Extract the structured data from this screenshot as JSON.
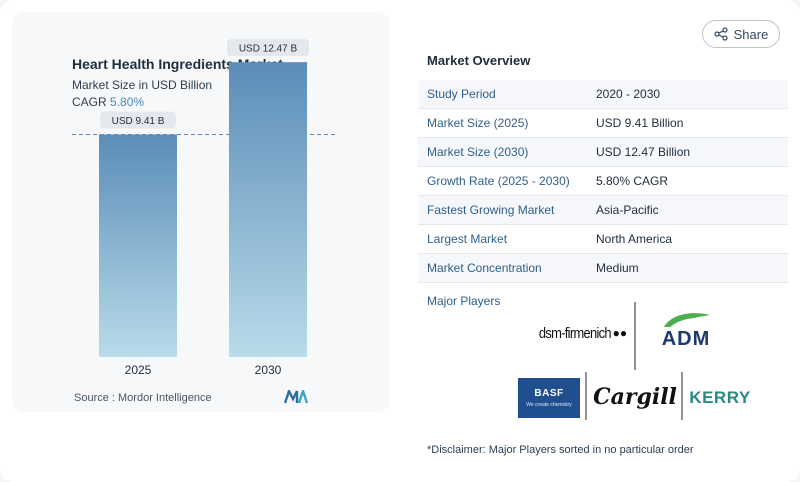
{
  "chart": {
    "title": "Heart Health Ingredients Market",
    "subtitle": "Market Size in USD Billion",
    "cagr_label": "CAGR",
    "cagr_value": "5.80%",
    "source": "Source :  Mordor Intelligence"
  },
  "chart_data": {
    "type": "bar",
    "categories": [
      "2025",
      "2030"
    ],
    "values": [
      9.41,
      12.47
    ],
    "data_labels": [
      "USD 9.41 B",
      "USD 12.47 B"
    ],
    "title": "Heart Health Ingredients Market",
    "ylabel": "",
    "xlabel": "",
    "ylim": [
      0,
      14
    ],
    "reference_line": 9.41,
    "colors": {
      "bar_top": "#5b8db8",
      "bar_bottom": "#b9dbea"
    }
  },
  "share": {
    "label": "Share",
    "icon": "share-icon"
  },
  "overview": {
    "title": "Market Overview",
    "rows": [
      {
        "key": "Study Period",
        "value": "2020 - 2030"
      },
      {
        "key": "Market Size (2025)",
        "value": "USD 9.41 Billion"
      },
      {
        "key": "Market Size (2030)",
        "value": "USD 12.47 Billion"
      },
      {
        "key": "Growth Rate (2025 - 2030)",
        "value": "5.80% CAGR"
      },
      {
        "key": "Fastest Growing Market",
        "value": "Asia-Pacific"
      },
      {
        "key": "Largest Market",
        "value": "North America"
      },
      {
        "key": "Market Concentration",
        "value": "Medium"
      }
    ]
  },
  "players": {
    "label": "Major Players",
    "logos": {
      "dsm": "dsm-firmenich",
      "adm": "ADM",
      "basf": "BASF",
      "basf_tag": "We create chemistry",
      "cargill": "Cargill",
      "kerry": "KERRY"
    }
  },
  "disclaimer": "*Disclaimer: Major Players sorted in no particular order"
}
